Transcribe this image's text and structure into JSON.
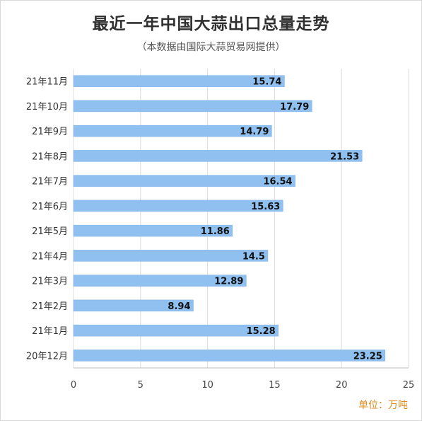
{
  "title": "最近一年中国大蒜出口总量走势",
  "subtitle": "（本数据由国际大蒜贸易网提供）",
  "unit_label": "单位：万吨",
  "colors": {
    "bar": "#90c0f0",
    "bar_edge": "#7fb2e6",
    "grid": "#dcdcdc",
    "unit": "#e08a1e"
  },
  "chart_data": {
    "type": "bar",
    "orientation": "horizontal",
    "categories": [
      "21年11月",
      "21年10月",
      "21年9月",
      "21年8月",
      "21年7月",
      "21年6月",
      "21年5月",
      "21年4月",
      "21年3月",
      "21年2月",
      "21年1月",
      "20年12月"
    ],
    "values": [
      15.74,
      17.79,
      14.79,
      21.53,
      16.54,
      15.63,
      11.86,
      14.5,
      12.89,
      8.94,
      15.28,
      23.25
    ],
    "value_labels": [
      "15.74",
      "17.79",
      "14.79",
      "21.53",
      "16.54",
      "15.63",
      "11.86",
      "14.5",
      "12.89",
      "8.94",
      "15.28",
      "23.25"
    ],
    "xlim": [
      0,
      25
    ],
    "xticks": [
      0,
      5,
      10,
      15,
      20,
      25
    ],
    "xtick_labels": [
      "0",
      "5",
      "10",
      "15",
      "20",
      "25"
    ],
    "grid": true
  }
}
